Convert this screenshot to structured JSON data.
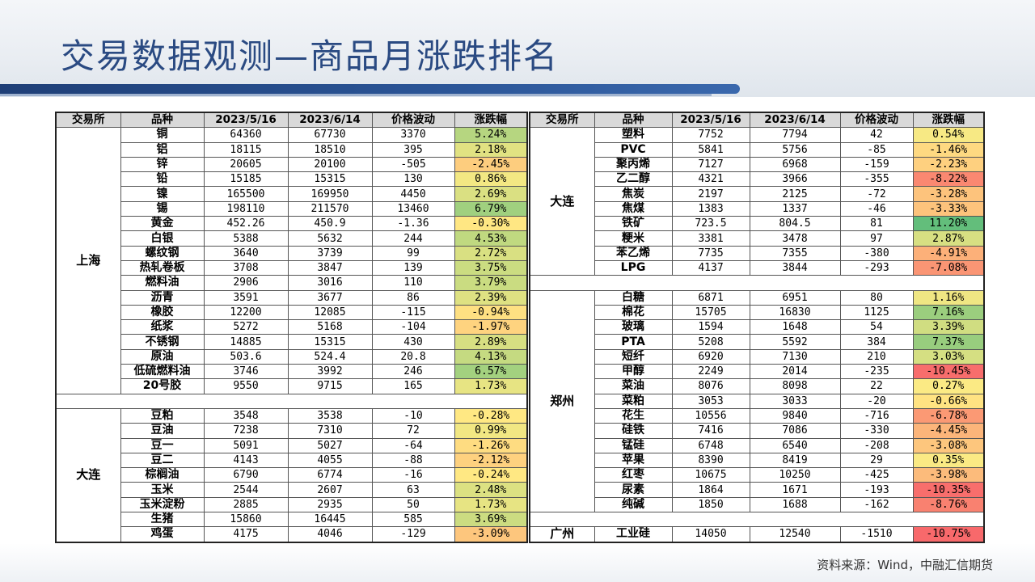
{
  "title": "交易数据观测—商品月涨跌排名",
  "source": "资料来源：Wind，中融汇信期货",
  "headers": [
    "交易所",
    "品种",
    "2023/5/16",
    "2023/6/14",
    "价格波动",
    "涨跌幅"
  ],
  "colors": {
    "header_bg": "#d9d9d9",
    "title": "#2a4a82",
    "stripe": "#1f3f77",
    "scale_negative": "#f8696b",
    "scale_mid": "#ffeb84",
    "scale_positive": "#63be7b"
  },
  "left_groups": [
    {
      "exchange": "上海",
      "rows": [
        {
          "name": "铜",
          "p1": "64360",
          "p2": "67730",
          "chg": "3370",
          "pct": "5.24%",
          "v": 5.24
        },
        {
          "name": "铝",
          "p1": "18115",
          "p2": "18510",
          "chg": "395",
          "pct": "2.18%",
          "v": 2.18
        },
        {
          "name": "锌",
          "p1": "20605",
          "p2": "20100",
          "chg": "-505",
          "pct": "-2.45%",
          "v": -2.45
        },
        {
          "name": "铅",
          "p1": "15185",
          "p2": "15315",
          "chg": "130",
          "pct": "0.86%",
          "v": 0.86
        },
        {
          "name": "镍",
          "p1": "165500",
          "p2": "169950",
          "chg": "4450",
          "pct": "2.69%",
          "v": 2.69
        },
        {
          "name": "锡",
          "p1": "198110",
          "p2": "211570",
          "chg": "13460",
          "pct": "6.79%",
          "v": 6.79
        },
        {
          "name": "黄金",
          "p1": "452.26",
          "p2": "450.9",
          "chg": "-1.36",
          "pct": "-0.30%",
          "v": -0.3
        },
        {
          "name": "白银",
          "p1": "5388",
          "p2": "5632",
          "chg": "244",
          "pct": "4.53%",
          "v": 4.53
        },
        {
          "name": "螺纹钢",
          "p1": "3640",
          "p2": "3739",
          "chg": "99",
          "pct": "2.72%",
          "v": 2.72
        },
        {
          "name": "热轧卷板",
          "p1": "3708",
          "p2": "3847",
          "chg": "139",
          "pct": "3.75%",
          "v": 3.75
        },
        {
          "name": "燃料油",
          "p1": "2906",
          "p2": "3016",
          "chg": "110",
          "pct": "3.79%",
          "v": 3.79
        },
        {
          "name": "沥青",
          "p1": "3591",
          "p2": "3677",
          "chg": "86",
          "pct": "2.39%",
          "v": 2.39
        },
        {
          "name": "橡胶",
          "p1": "12200",
          "p2": "12085",
          "chg": "-115",
          "pct": "-0.94%",
          "v": -0.94
        },
        {
          "name": "纸浆",
          "p1": "5272",
          "p2": "5168",
          "chg": "-104",
          "pct": "-1.97%",
          "v": -1.97
        },
        {
          "name": "不锈钢",
          "p1": "14885",
          "p2": "15315",
          "chg": "430",
          "pct": "2.89%",
          "v": 2.89
        },
        {
          "name": "原油",
          "p1": "503.6",
          "p2": "524.4",
          "chg": "20.8",
          "pct": "4.13%",
          "v": 4.13
        },
        {
          "name": "低硫燃料油",
          "p1": "3746",
          "p2": "3992",
          "chg": "246",
          "pct": "6.57%",
          "v": 6.57
        },
        {
          "name": "20号胶",
          "p1": "9550",
          "p2": "9715",
          "chg": "165",
          "pct": "1.73%",
          "v": 1.73
        }
      ]
    },
    {
      "exchange": "大连",
      "rows": [
        {
          "name": "豆粕",
          "p1": "3548",
          "p2": "3538",
          "chg": "-10",
          "pct": "-0.28%",
          "v": -0.28
        },
        {
          "name": "豆油",
          "p1": "7238",
          "p2": "7310",
          "chg": "72",
          "pct": "0.99%",
          "v": 0.99
        },
        {
          "name": "豆一",
          "p1": "5091",
          "p2": "5027",
          "chg": "-64",
          "pct": "-1.26%",
          "v": -1.26
        },
        {
          "name": "豆二",
          "p1": "4143",
          "p2": "4055",
          "chg": "-88",
          "pct": "-2.12%",
          "v": -2.12
        },
        {
          "name": "棕榈油",
          "p1": "6790",
          "p2": "6774",
          "chg": "-16",
          "pct": "-0.24%",
          "v": -0.24
        },
        {
          "name": "玉米",
          "p1": "2544",
          "p2": "2607",
          "chg": "63",
          "pct": "2.48%",
          "v": 2.48
        },
        {
          "name": "玉米淀粉",
          "p1": "2885",
          "p2": "2935",
          "chg": "50",
          "pct": "1.73%",
          "v": 1.73
        },
        {
          "name": "生猪",
          "p1": "15860",
          "p2": "16445",
          "chg": "585",
          "pct": "3.69%",
          "v": 3.69
        },
        {
          "name": "鸡蛋",
          "p1": "4175",
          "p2": "4046",
          "chg": "-129",
          "pct": "-3.09%",
          "v": -3.09
        }
      ]
    }
  ],
  "right_groups": [
    {
      "exchange": "大连",
      "rows": [
        {
          "name": "塑料",
          "p1": "7752",
          "p2": "7794",
          "chg": "42",
          "pct": "0.54%",
          "v": 0.54
        },
        {
          "name": "PVC",
          "p1": "5841",
          "p2": "5756",
          "chg": "-85",
          "pct": "-1.46%",
          "v": -1.46
        },
        {
          "name": "聚丙烯",
          "p1": "7127",
          "p2": "6968",
          "chg": "-159",
          "pct": "-2.23%",
          "v": -2.23
        },
        {
          "name": "乙二醇",
          "p1": "4321",
          "p2": "3966",
          "chg": "-355",
          "pct": "-8.22%",
          "v": -8.22
        },
        {
          "name": "焦炭",
          "p1": "2197",
          "p2": "2125",
          "chg": "-72",
          "pct": "-3.28%",
          "v": -3.28
        },
        {
          "name": "焦煤",
          "p1": "1383",
          "p2": "1337",
          "chg": "-46",
          "pct": "-3.33%",
          "v": -3.33
        },
        {
          "name": "铁矿",
          "p1": "723.5",
          "p2": "804.5",
          "chg": "81",
          "pct": "11.20%",
          "v": 11.2
        },
        {
          "name": "粳米",
          "p1": "3381",
          "p2": "3478",
          "chg": "97",
          "pct": "2.87%",
          "v": 2.87
        },
        {
          "name": "苯乙烯",
          "p1": "7735",
          "p2": "7355",
          "chg": "-380",
          "pct": "-4.91%",
          "v": -4.91
        },
        {
          "name": "LPG",
          "p1": "4137",
          "p2": "3844",
          "chg": "-293",
          "pct": "-7.08%",
          "v": -7.08
        }
      ]
    },
    {
      "exchange": "郑州",
      "rows": [
        {
          "name": "白糖",
          "p1": "6871",
          "p2": "6951",
          "chg": "80",
          "pct": "1.16%",
          "v": 1.16
        },
        {
          "name": "棉花",
          "p1": "15705",
          "p2": "16830",
          "chg": "1125",
          "pct": "7.16%",
          "v": 7.16
        },
        {
          "name": "玻璃",
          "p1": "1594",
          "p2": "1648",
          "chg": "54",
          "pct": "3.39%",
          "v": 3.39
        },
        {
          "name": "PTA",
          "p1": "5208",
          "p2": "5592",
          "chg": "384",
          "pct": "7.37%",
          "v": 7.37
        },
        {
          "name": "短纤",
          "p1": "6920",
          "p2": "7130",
          "chg": "210",
          "pct": "3.03%",
          "v": 3.03
        },
        {
          "name": "甲醇",
          "p1": "2249",
          "p2": "2014",
          "chg": "-235",
          "pct": "-10.45%",
          "v": -10.45
        },
        {
          "name": "菜油",
          "p1": "8076",
          "p2": "8098",
          "chg": "22",
          "pct": "0.27%",
          "v": 0.27
        },
        {
          "name": "菜粕",
          "p1": "3053",
          "p2": "3033",
          "chg": "-20",
          "pct": "-0.66%",
          "v": -0.66
        },
        {
          "name": "花生",
          "p1": "10556",
          "p2": "9840",
          "chg": "-716",
          "pct": "-6.78%",
          "v": -6.78
        },
        {
          "name": "硅铁",
          "p1": "7416",
          "p2": "7086",
          "chg": "-330",
          "pct": "-4.45%",
          "v": -4.45
        },
        {
          "name": "锰硅",
          "p1": "6748",
          "p2": "6540",
          "chg": "-208",
          "pct": "-3.08%",
          "v": -3.08
        },
        {
          "name": "苹果",
          "p1": "8390",
          "p2": "8419",
          "chg": "29",
          "pct": "0.35%",
          "v": 0.35
        },
        {
          "name": "红枣",
          "p1": "10675",
          "p2": "10250",
          "chg": "-425",
          "pct": "-3.98%",
          "v": -3.98
        },
        {
          "name": "尿素",
          "p1": "1864",
          "p2": "1671",
          "chg": "-193",
          "pct": "-10.35%",
          "v": -10.35
        },
        {
          "name": "纯碱",
          "p1": "1850",
          "p2": "1688",
          "chg": "-162",
          "pct": "-8.76%",
          "v": -8.76
        }
      ]
    },
    {
      "exchange": "广州",
      "rows": [
        {
          "name": "工业硅",
          "p1": "14050",
          "p2": "12540",
          "chg": "-1510",
          "pct": "-10.75%",
          "v": -10.75
        }
      ]
    }
  ]
}
